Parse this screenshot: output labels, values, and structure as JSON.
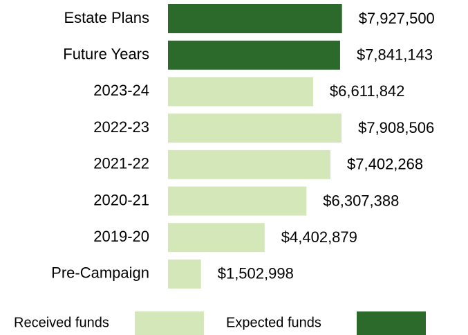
{
  "chart_data": {
    "type": "bar",
    "orientation": "horizontal",
    "categories": [
      "Estate Plans",
      "Future Years",
      "2023-24",
      "2022-23",
      "2021-22",
      "2020-21",
      "2019-20",
      "Pre-Campaign"
    ],
    "series": [
      {
        "name": "Received funds",
        "color": "#d3e7b8",
        "values": [
          null,
          null,
          6611842,
          7908506,
          7402268,
          6307388,
          4402879,
          1502998
        ],
        "value_labels": [
          null,
          null,
          "$6,611,842",
          "$7,908,506",
          "$7,402,268",
          "$6,307,388",
          "$4,402,879",
          "$1,502,998"
        ]
      },
      {
        "name": "Expected funds",
        "color": "#2b6a2a",
        "values": [
          7927500,
          7841143,
          null,
          null,
          null,
          null,
          null,
          null
        ],
        "value_labels": [
          "$7,927,500",
          "$7,841,143",
          null,
          null,
          null,
          null,
          null,
          null
        ]
      }
    ],
    "xlim": [
      0,
      8000000
    ],
    "grid": false,
    "legend": "bottom"
  }
}
